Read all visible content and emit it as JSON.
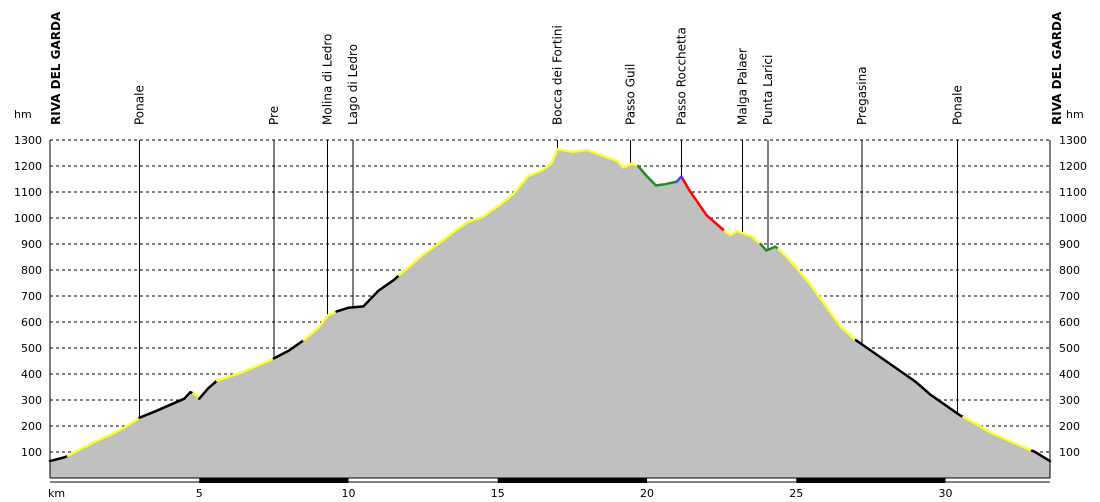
{
  "chart_data": {
    "type": "area",
    "ylabel": "hm",
    "xlabel": "km",
    "ylim": [
      0,
      1300
    ],
    "xlim": [
      0,
      33.5
    ],
    "grid": true,
    "y_ticks": [
      100,
      200,
      300,
      400,
      500,
      600,
      700,
      800,
      900,
      1000,
      1100,
      1200,
      1300
    ],
    "x_ticks": [
      5,
      10,
      15,
      20,
      25,
      30
    ],
    "waypoints": [
      {
        "name": "RIVA DEL GARDA",
        "km": 0.0,
        "end": true
      },
      {
        "name": "Ponale",
        "km": 3.0
      },
      {
        "name": "Pre",
        "km": 7.5
      },
      {
        "name": "Molina di Ledro",
        "km": 9.3
      },
      {
        "name": "Lago di Ledro",
        "km": 10.15
      },
      {
        "name": "Bocca dei Fortini",
        "km": 17.0
      },
      {
        "name": "Passo Guil",
        "km": 19.45
      },
      {
        "name": "Passo Rocchetta",
        "km": 21.15
      },
      {
        "name": "Malga Palaer",
        "km": 23.2
      },
      {
        "name": "Punta Larici",
        "km": 24.05
      },
      {
        "name": "Pregasina",
        "km": 27.2
      },
      {
        "name": "Ponale",
        "km": 30.4
      },
      {
        "name": "RIVA DEL GARDA",
        "km": 33.5,
        "end": true
      }
    ],
    "profile": [
      [
        0.0,
        65
      ],
      [
        0.5,
        80
      ],
      [
        1.0,
        110
      ],
      [
        1.5,
        140
      ],
      [
        2.0,
        165
      ],
      [
        2.5,
        195
      ],
      [
        3.0,
        232
      ],
      [
        3.5,
        255
      ],
      [
        4.0,
        280
      ],
      [
        4.5,
        305
      ],
      [
        4.7,
        330
      ],
      [
        4.9,
        320
      ],
      [
        5.0,
        305
      ],
      [
        5.3,
        345
      ],
      [
        5.6,
        375
      ],
      [
        6.0,
        390
      ],
      [
        6.5,
        410
      ],
      [
        7.0,
        435
      ],
      [
        7.5,
        460
      ],
      [
        8.0,
        490
      ],
      [
        8.5,
        530
      ],
      [
        9.0,
        580
      ],
      [
        9.3,
        625
      ],
      [
        9.6,
        640
      ],
      [
        10.0,
        655
      ],
      [
        10.5,
        660
      ],
      [
        11.0,
        720
      ],
      [
        11.5,
        760
      ],
      [
        12.0,
        810
      ],
      [
        12.5,
        860
      ],
      [
        13.0,
        900
      ],
      [
        13.5,
        945
      ],
      [
        14.0,
        985
      ],
      [
        14.5,
        1005
      ],
      [
        14.8,
        1030
      ],
      [
        15.0,
        1045
      ],
      [
        15.5,
        1090
      ],
      [
        16.0,
        1160
      ],
      [
        16.5,
        1185
      ],
      [
        16.8,
        1210
      ],
      [
        17.0,
        1265
      ],
      [
        17.5,
        1255
      ],
      [
        18.0,
        1262
      ],
      [
        18.5,
        1240
      ],
      [
        19.0,
        1220
      ],
      [
        19.2,
        1195
      ],
      [
        19.5,
        1210
      ],
      [
        19.7,
        1200
      ],
      [
        20.0,
        1160
      ],
      [
        20.3,
        1125
      ],
      [
        20.6,
        1130
      ],
      [
        21.0,
        1140
      ],
      [
        21.15,
        1160
      ],
      [
        21.4,
        1110
      ],
      [
        21.7,
        1060
      ],
      [
        22.0,
        1010
      ],
      [
        22.3,
        980
      ],
      [
        22.6,
        950
      ],
      [
        22.8,
        935
      ],
      [
        23.0,
        950
      ],
      [
        23.5,
        930
      ],
      [
        23.8,
        900
      ],
      [
        24.0,
        875
      ],
      [
        24.3,
        890
      ],
      [
        24.6,
        860
      ],
      [
        25.0,
        810
      ],
      [
        25.5,
        740
      ],
      [
        26.0,
        660
      ],
      [
        26.5,
        580
      ],
      [
        27.0,
        530
      ],
      [
        27.5,
        490
      ],
      [
        28.0,
        450
      ],
      [
        28.5,
        410
      ],
      [
        29.0,
        370
      ],
      [
        29.5,
        320
      ],
      [
        30.0,
        280
      ],
      [
        30.5,
        240
      ],
      [
        31.0,
        210
      ],
      [
        31.5,
        175
      ],
      [
        32.0,
        150
      ],
      [
        32.5,
        125
      ],
      [
        33.0,
        100
      ],
      [
        33.5,
        65
      ]
    ],
    "segments": [
      {
        "from": 0.0,
        "to": 0.6,
        "color": "#000000"
      },
      {
        "from": 0.6,
        "to": 3.0,
        "color": "#ffff33"
      },
      {
        "from": 3.0,
        "to": 4.8,
        "color": "#000000"
      },
      {
        "from": 4.8,
        "to": 5.0,
        "color": "#ffff33"
      },
      {
        "from": 5.0,
        "to": 5.6,
        "color": "#000000"
      },
      {
        "from": 5.6,
        "to": 7.5,
        "color": "#ffff33"
      },
      {
        "from": 7.5,
        "to": 8.5,
        "color": "#000000"
      },
      {
        "from": 8.5,
        "to": 9.6,
        "color": "#ffff33"
      },
      {
        "from": 9.6,
        "to": 11.7,
        "color": "#000000"
      },
      {
        "from": 11.7,
        "to": 19.7,
        "color": "#ffff33"
      },
      {
        "from": 19.7,
        "to": 21.0,
        "color": "#228b22"
      },
      {
        "from": 21.0,
        "to": 21.2,
        "color": "#4444ff"
      },
      {
        "from": 21.2,
        "to": 22.6,
        "color": "#ff0000"
      },
      {
        "from": 22.6,
        "to": 23.8,
        "color": "#ffff33"
      },
      {
        "from": 23.8,
        "to": 24.4,
        "color": "#228b22"
      },
      {
        "from": 24.4,
        "to": 27.0,
        "color": "#ffff33"
      },
      {
        "from": 27.0,
        "to": 30.6,
        "color": "#000000"
      },
      {
        "from": 30.6,
        "to": 32.9,
        "color": "#ffff33"
      },
      {
        "from": 32.9,
        "to": 33.5,
        "color": "#000000"
      }
    ],
    "colors": {
      "fill": "#c0c0c0",
      "grid": "#000000",
      "marker_line": "#000000"
    }
  }
}
